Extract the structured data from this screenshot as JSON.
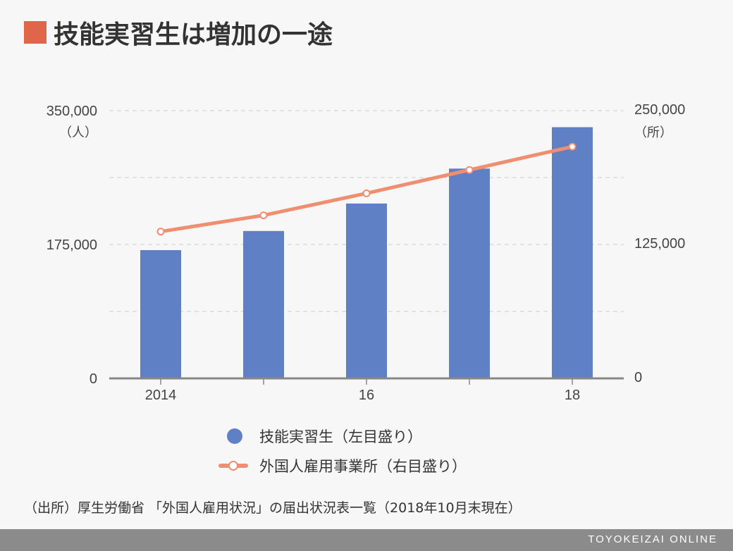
{
  "title": "技能実習生は増加の一途",
  "chart_data": {
    "type": "bar",
    "categories": [
      "2014",
      "",
      "16",
      "",
      "18"
    ],
    "series": [
      {
        "name": "技能実習生（左目盛り）",
        "type": "bar",
        "axis": "left",
        "color": "#6080c6",
        "values": [
          167626,
          192655,
          228588,
          274233,
          328360
        ]
      },
      {
        "name": "外国人雇用事業所（右目盛り）",
        "type": "line",
        "axis": "right",
        "color": "#f08e70",
        "values": [
          137053,
          152261,
          172798,
          194595,
          216348
        ]
      }
    ],
    "left_axis": {
      "min": 0,
      "max": 350000,
      "ticks": [
        "0",
        "175,000",
        "350,000"
      ],
      "unit": "（人）"
    },
    "right_axis": {
      "min": 0,
      "max": 250000,
      "ticks": [
        "0",
        "125,000",
        "250,000"
      ],
      "unit": "（所）"
    },
    "grid": true
  },
  "legend": {
    "bar_label": "技能実習生（左目盛り）",
    "line_label": "外国人雇用事業所（右目盛り）"
  },
  "source": "（出所）厚生労働省 「外国人雇用状況」の届出状況表一覧（2018年10月末現在）",
  "footer": "TOYOKEIZAI ONLINE"
}
